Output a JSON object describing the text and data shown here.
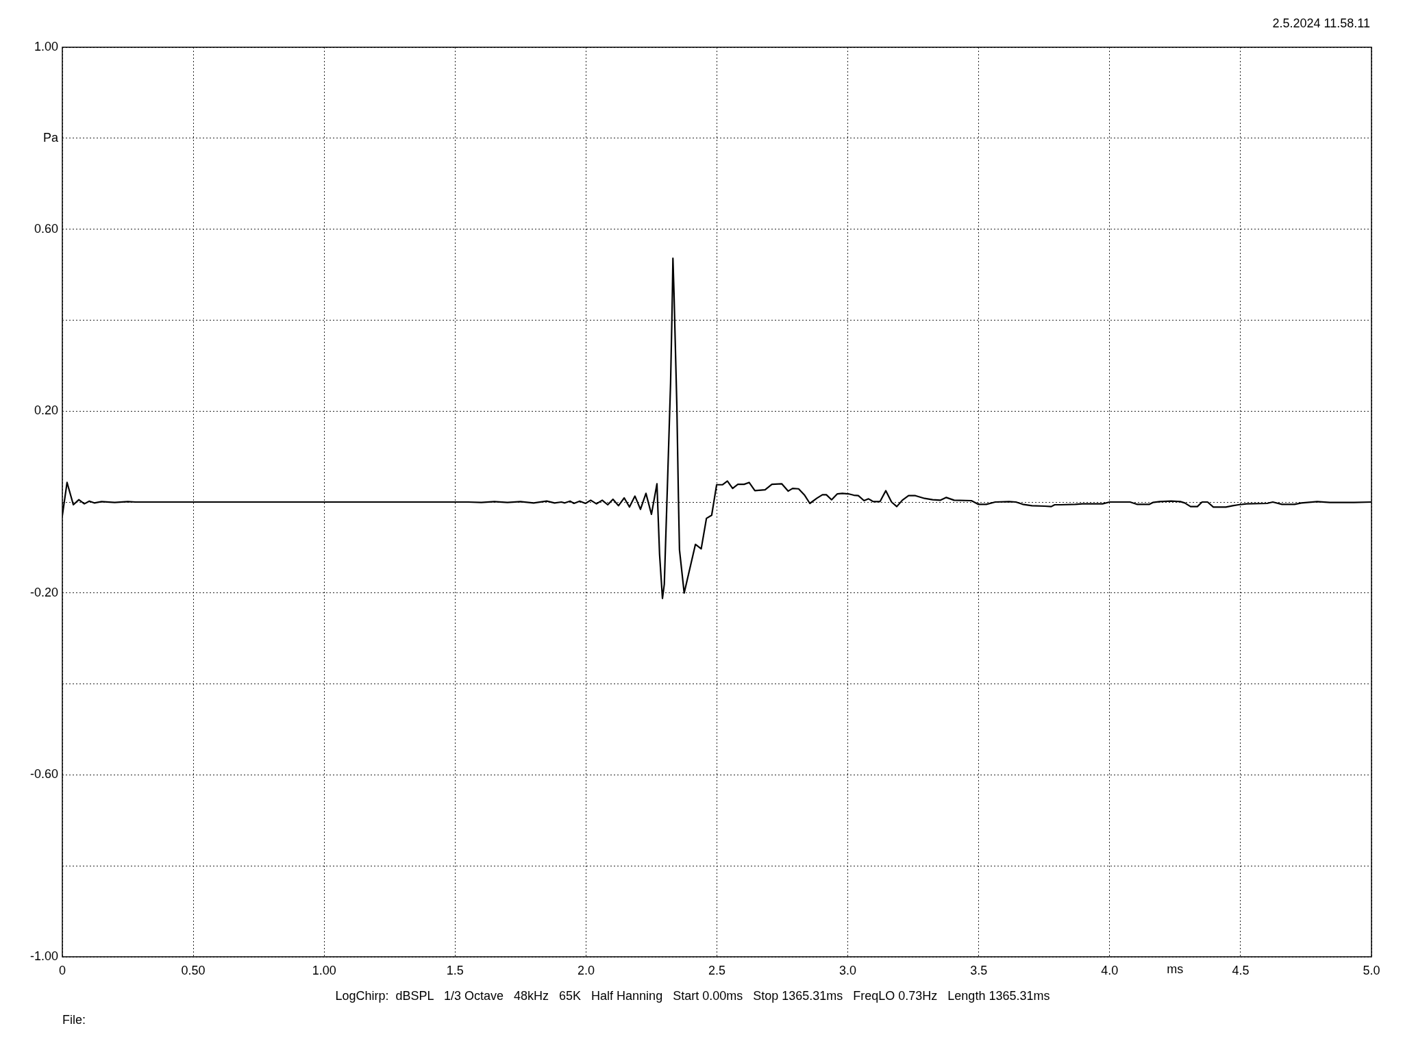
{
  "chart_data": {
    "type": "line",
    "xlabel": "ms",
    "ylabel": "Pa",
    "annotations": [
      "2.5.2024 11.58.11",
      "LogChirp:  dBSPL   1/3 Octave   48kHz   65K   Half Hanning   Start 0.00ms   Stop 1365.31ms   FreqLO 0.73Hz   Length 1365.31ms",
      "File:"
    ],
    "x": [
      0,
      0.018,
      0.042,
      0.063,
      0.084,
      0.103,
      0.122,
      0.15,
      0.2,
      0.25,
      0.28,
      0.5,
      1.0,
      1.55,
      1.6,
      1.65,
      1.7,
      1.75,
      1.8,
      1.85,
      1.88,
      1.906,
      1.919,
      1.939,
      1.954,
      1.976,
      1.998,
      2.018,
      2.04,
      2.062,
      2.083,
      2.103,
      2.124,
      2.146,
      2.166,
      2.187,
      2.208,
      2.229,
      2.25,
      2.271,
      2.281,
      2.292,
      2.299,
      2.312,
      2.323,
      2.328,
      2.33,
      2.332,
      2.336,
      2.347,
      2.353,
      2.357,
      2.375,
      2.418,
      2.44,
      2.46,
      2.48,
      2.499,
      2.521,
      2.54,
      2.56,
      2.58,
      2.604,
      2.623,
      2.645,
      2.684,
      2.71,
      2.748,
      2.772,
      2.789,
      2.812,
      2.835,
      2.855,
      2.881,
      2.903,
      2.918,
      2.938,
      2.96,
      2.979,
      3.002,
      3.023,
      3.04,
      3.062,
      3.079,
      3.097,
      3.123,
      3.145,
      3.167,
      3.187,
      3.208,
      3.232,
      3.258,
      3.293,
      3.324,
      3.354,
      3.376,
      3.406,
      3.472,
      3.498,
      3.529,
      3.563,
      3.616,
      3.642,
      3.668,
      3.703,
      3.751,
      3.777,
      3.79,
      3.812,
      3.869,
      3.895,
      3.973,
      4.0,
      4.078,
      4.104,
      4.152,
      4.165,
      4.191,
      4.235,
      4.27,
      4.287,
      4.309,
      4.335,
      4.353,
      4.374,
      4.396,
      4.444,
      4.47,
      4.492,
      4.523,
      4.601,
      4.623,
      4.658,
      4.706,
      4.732,
      4.793,
      4.841,
      4.898,
      4.934,
      5.0
    ],
    "series": [
      {
        "color": "#000000",
        "values": [
          -0.03,
          0.043,
          -0.006,
          0.005,
          -0.004,
          0.002,
          -0.002,
          0.001,
          -0.001,
          0.001,
          0,
          0,
          0,
          0,
          -0.001,
          0.001,
          -0.001,
          0.001,
          -0.002,
          0.002,
          -0.002,
          0,
          -0.002,
          0.002,
          -0.003,
          0.002,
          -0.003,
          0.004,
          -0.004,
          0.004,
          -0.006,
          0.006,
          -0.008,
          0.009,
          -0.011,
          0.013,
          -0.016,
          0.019,
          -0.027,
          0.04,
          -0.115,
          -0.212,
          -0.181,
          0.055,
          0.261,
          0.401,
          0.464,
          0.536,
          0.462,
          0.211,
          0.01,
          -0.105,
          -0.2,
          -0.093,
          -0.103,
          -0.036,
          -0.029,
          0.038,
          0.038,
          0.046,
          0.03,
          0.039,
          0.039,
          0.043,
          0.025,
          0.027,
          0.039,
          0.04,
          0.024,
          0.03,
          0.029,
          0.015,
          -0.003,
          0.008,
          0.016,
          0.016,
          0.005,
          0.018,
          0.019,
          0.018,
          0.015,
          0.014,
          0.003,
          0.007,
          0.001,
          0.001,
          0.025,
          0,
          -0.01,
          0.004,
          0.014,
          0.014,
          0.008,
          0.005,
          0.004,
          0.01,
          0.004,
          0.003,
          -0.005,
          -0.005,
          0,
          0.001,
          0,
          -0.005,
          -0.008,
          -0.009,
          -0.01,
          -0.006,
          -0.006,
          -0.005,
          -0.004,
          -0.004,
          0,
          0,
          -0.005,
          -0.005,
          -0.001,
          0.001,
          0.002,
          0.001,
          -0.002,
          -0.01,
          -0.01,
          0,
          0,
          -0.011,
          -0.011,
          -0.008,
          -0.006,
          -0.004,
          -0.003,
          0,
          -0.005,
          -0.005,
          -0.002,
          0.001,
          -0.001,
          -0.001,
          -0.001,
          0
        ]
      }
    ],
    "xlim": [
      0,
      5
    ],
    "xticks": [
      0,
      {
        "value": 0.5,
        "label": "0.50"
      },
      {
        "value": 1,
        "label": "1.00"
      },
      1.5,
      {
        "value": 2,
        "label": "2.0"
      },
      2.5,
      {
        "value": 3,
        "label": "3.0"
      },
      3.5,
      {
        "value": 4,
        "label": "4.0"
      },
      4.5,
      {
        "value": 5,
        "label": "5.0"
      }
    ],
    "ylim": [
      -1,
      1
    ],
    "yticks": [
      {
        "value": -1,
        "label": "-1.00"
      },
      {
        "value": -0.8,
        "label": null
      },
      {
        "value": -0.6,
        "label": "-0.60"
      },
      {
        "value": -0.4,
        "label": null
      },
      {
        "value": -0.2,
        "label": "-0.20"
      },
      {
        "value": 0,
        "label": null
      },
      {
        "value": 0.2,
        "label": "0.20"
      },
      {
        "value": 0.4,
        "label": null
      },
      {
        "value": 0.6,
        "label": "0.60"
      },
      {
        "value": 0.8,
        "label": null
      },
      {
        "value": 1,
        "label": "1.00"
      }
    ],
    "grid": true,
    "marker": "none",
    "line_style": "solid"
  }
}
